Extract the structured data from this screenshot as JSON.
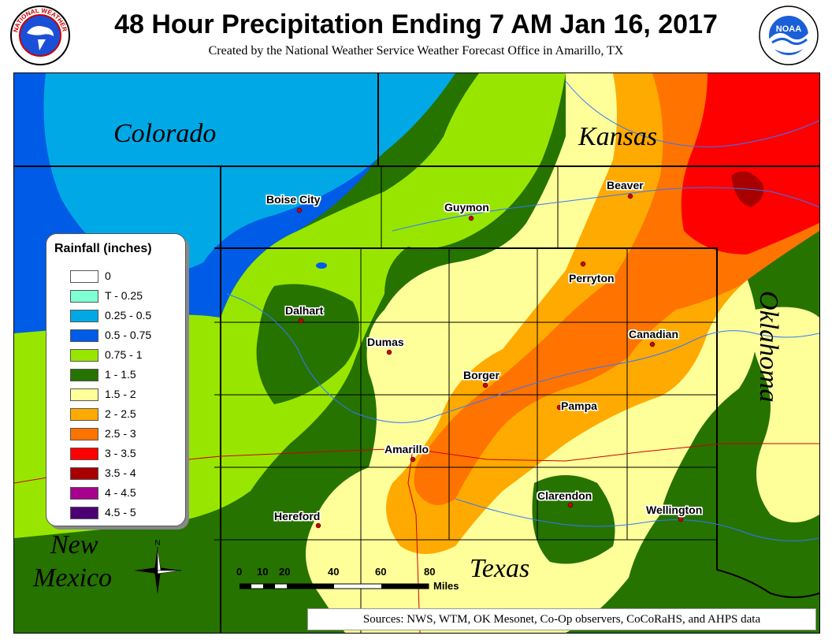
{
  "header": {
    "title": "48 Hour Precipitation Ending 7 AM Jan 16, 2017",
    "subtitle": "Created by the National Weather Service Weather Forecast Office in Amarillo, TX",
    "nws_logo_text": "NATIONAL WEATHER SERVICE",
    "noaa_logo_text": "NOAA"
  },
  "map": {
    "states": [
      {
        "name": "Colorado"
      },
      {
        "name": "Kansas"
      },
      {
        "name": "Oklahoma"
      },
      {
        "name": "New Mexico"
      },
      {
        "name": "Texas"
      }
    ],
    "new_mexico_line1": "New",
    "new_mexico_line2": "Mexico",
    "cities": [
      {
        "name": "Boise City"
      },
      {
        "name": "Guymon"
      },
      {
        "name": "Beaver"
      },
      {
        "name": "Perryton"
      },
      {
        "name": "Dalhart"
      },
      {
        "name": "Dumas"
      },
      {
        "name": "Canadian"
      },
      {
        "name": "Borger"
      },
      {
        "name": "Pampa"
      },
      {
        "name": "Amarillo"
      },
      {
        "name": "Clarendon"
      },
      {
        "name": "Wellington"
      },
      {
        "name": "Hereford"
      }
    ]
  },
  "legend": {
    "title": "Rainfall (inches)",
    "items": [
      {
        "label": "0",
        "color": "#ffffff"
      },
      {
        "label": "T - 0.25",
        "color": "#7fffd4"
      },
      {
        "label": "0.25 - 0.5",
        "color": "#00a9e6"
      },
      {
        "label": "0.5 - 0.75",
        "color": "#005ce6"
      },
      {
        "label": "0.75 - 1",
        "color": "#98e600"
      },
      {
        "label": "1 - 1.5",
        "color": "#267300"
      },
      {
        "label": "1.5 - 2",
        "color": "#ffff99"
      },
      {
        "label": "2 - 2.5",
        "color": "#ffaa00"
      },
      {
        "label": "2.5 - 3",
        "color": "#ff7300"
      },
      {
        "label": "3 - 3.5",
        "color": "#ff0000"
      },
      {
        "label": "3.5 - 4",
        "color": "#a80000"
      },
      {
        "label": "4 - 4.5",
        "color": "#a8008f"
      },
      {
        "label": "4.5 - 5",
        "color": "#4c0073"
      }
    ]
  },
  "scalebar": {
    "ticks": [
      "0",
      "10",
      "20",
      "40",
      "60",
      "80"
    ],
    "units": "Miles"
  },
  "compass": {
    "north_label": "N"
  },
  "sources": "Sources:  NWS, WTM, OK Mesonet, Co-Op observers, CoCoRaHS, and AHPS data"
}
